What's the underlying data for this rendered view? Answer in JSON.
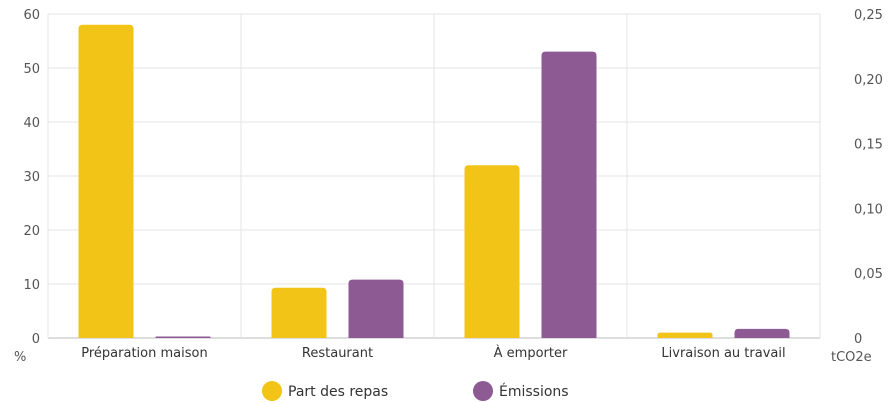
{
  "chart_data": {
    "type": "bar",
    "categories": [
      "Préparation maison",
      "Restaurant",
      "À emporter",
      "Livraison au travail"
    ],
    "series": [
      {
        "name": "Part des repas",
        "axis": "left",
        "color": "#F2C417",
        "values": [
          58,
          9.3,
          32,
          1
        ]
      },
      {
        "name": "Émissions",
        "axis": "right",
        "color": "#8E5A94",
        "values": [
          0.0005,
          0.045,
          0.221,
          0.007
        ]
      }
    ],
    "y_left": {
      "unit": "%",
      "ylim": [
        0,
        60
      ],
      "ticks": [
        "0",
        "10",
        "20",
        "30",
        "40",
        "50",
        "60"
      ]
    },
    "y_right": {
      "unit": "tCO2e",
      "ylim": [
        0,
        0.25
      ],
      "ticks": [
        "0",
        "0,05",
        "0,10",
        "0,15",
        "0,20",
        "0,25"
      ]
    },
    "grid": true,
    "legend_position": "bottom"
  }
}
